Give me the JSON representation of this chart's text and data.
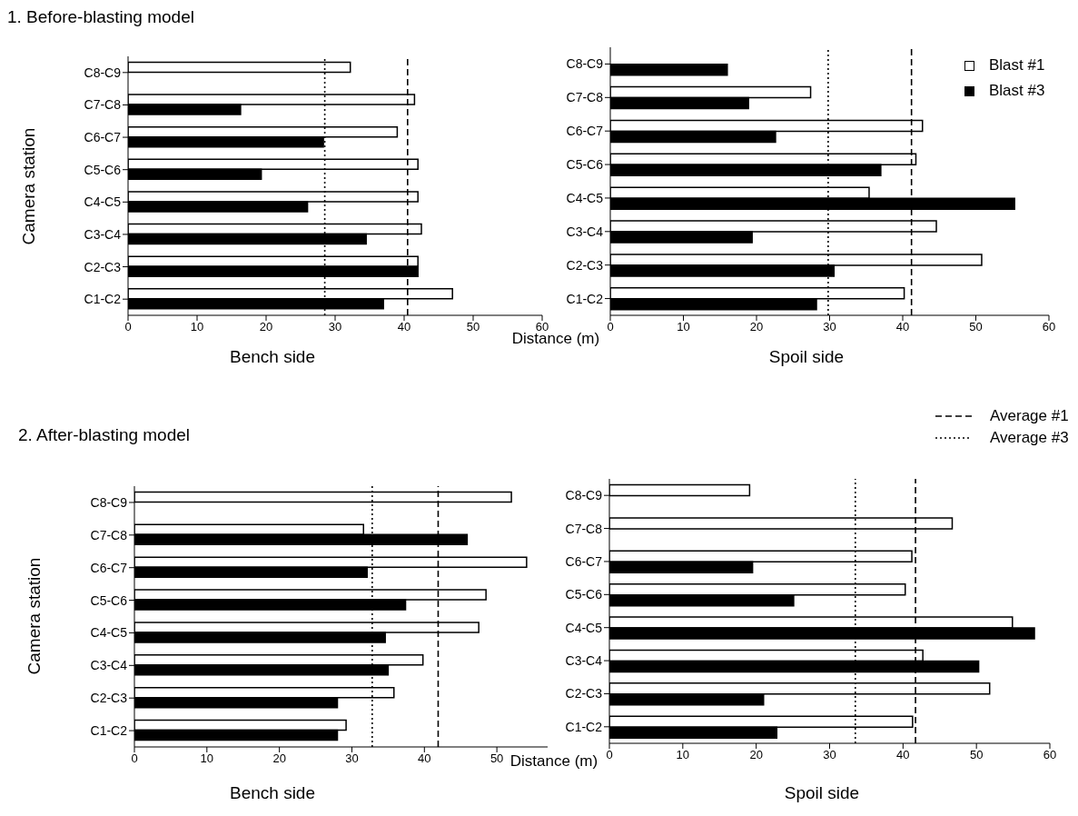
{
  "chart_data": [
    {
      "type": "bar",
      "orientation": "horizontal",
      "title": "1.  Before-blasting model",
      "xlabel": "Bench side",
      "ylabel": "Camera station",
      "annotations": [
        "Distance (m)"
      ],
      "categories": [
        "C8-C9",
        "C7-C8",
        "C6-C7",
        "C5-C6",
        "C4-C5",
        "C3-C4",
        "C2-C3",
        "C1-C2"
      ],
      "series": [
        {
          "color": "#ffffff",
          "values": [
            32.2,
            41.5,
            39,
            42,
            42,
            42.5,
            42,
            47
          ]
        },
        {
          "color": "#000000",
          "values": [
            null,
            16.3,
            28.3,
            19.3,
            26,
            34.5,
            42,
            37
          ]
        }
      ],
      "xlim": [
        0,
        60
      ],
      "xticks": [
        0,
        10,
        20,
        30,
        40,
        50,
        60
      ],
      "ref_lines": [
        {
          "axis": "x",
          "value": 40.5,
          "line_style": "dashed",
          "color": "#000000"
        },
        {
          "axis": "x",
          "value": 28.5,
          "line_style": "dotted",
          "color": "#000000"
        }
      ]
    },
    {
      "type": "bar",
      "orientation": "horizontal",
      "xlabel": "Spoil side",
      "categories": [
        "C8-C9",
        "C7-C8",
        "C6-C7",
        "C5-C6",
        "C4-C5",
        "C3-C4",
        "C2-C3",
        "C1-C2"
      ],
      "series": [
        {
          "name": "Blast #1",
          "color": "#ffffff",
          "values": [
            null,
            27.4,
            42.7,
            41.8,
            35.4,
            44.6,
            50.8,
            40.2
          ]
        },
        {
          "name": "Blast #3",
          "color": "#000000",
          "values": [
            16,
            18.9,
            22.6,
            37,
            55.3,
            19.4,
            30.6,
            28.2
          ]
        }
      ],
      "xlim": [
        0,
        60
      ],
      "xticks": [
        0,
        10,
        20,
        30,
        40,
        50,
        60
      ],
      "legend": "top right",
      "ref_lines": [
        {
          "axis": "x",
          "value": 41.2,
          "line_style": "dashed",
          "color": "#000000"
        },
        {
          "axis": "x",
          "value": 29.8,
          "line_style": "dotted",
          "color": "#000000"
        }
      ]
    },
    {
      "type": "bar",
      "orientation": "horizontal",
      "title": "2.  After-blasting model",
      "xlabel": "Bench side",
      "ylabel": "Camera station",
      "annotations": [
        "Distance (m)"
      ],
      "categories": [
        "C8-C9",
        "C7-C8",
        "C6-C7",
        "C5-C6",
        "C4-C5",
        "C3-C4",
        "C2-C3",
        "C1-C2"
      ],
      "series": [
        {
          "color": "#ffffff",
          "values": [
            52,
            31.6,
            54.1,
            48.5,
            47.5,
            39.8,
            35.8,
            29.2
          ]
        },
        {
          "color": "#000000",
          "values": [
            null,
            45.9,
            32.1,
            37.4,
            34.6,
            35,
            28,
            28
          ]
        }
      ],
      "xlim": [
        0,
        57
      ],
      "xticks": [
        0,
        10,
        20,
        30,
        40,
        50
      ],
      "ref_lines": [
        {
          "axis": "x",
          "value": 41.9,
          "line_style": "dashed",
          "color": "#000000"
        },
        {
          "axis": "x",
          "value": 32.8,
          "line_style": "dotted",
          "color": "#000000"
        }
      ]
    },
    {
      "type": "bar",
      "orientation": "horizontal",
      "xlabel": "Spoil side",
      "categories": [
        "C8-C9",
        "C7-C8",
        "C6-C7",
        "C5-C6",
        "C4-C5",
        "C3-C4",
        "C2-C3",
        "C1-C2"
      ],
      "series": [
        {
          "color": "#ffffff",
          "values": [
            19.1,
            46.7,
            41.2,
            40.3,
            54.9,
            42.7,
            51.8,
            41.3
          ]
        },
        {
          "color": "#000000",
          "values": [
            null,
            null,
            19.5,
            25.1,
            57.9,
            50.3,
            21,
            22.8
          ]
        }
      ],
      "xlim": [
        0,
        60
      ],
      "xticks": [
        0,
        10,
        20,
        30,
        40,
        50,
        60
      ],
      "legend": "top right",
      "ref_lines": [
        {
          "axis": "x",
          "value": 41.7,
          "line_style": "dashed",
          "color": "#000000",
          "label": "Average #1"
        },
        {
          "axis": "x",
          "value": 33.5,
          "line_style": "dotted",
          "color": "#000000",
          "label": "Average #3"
        }
      ]
    }
  ]
}
